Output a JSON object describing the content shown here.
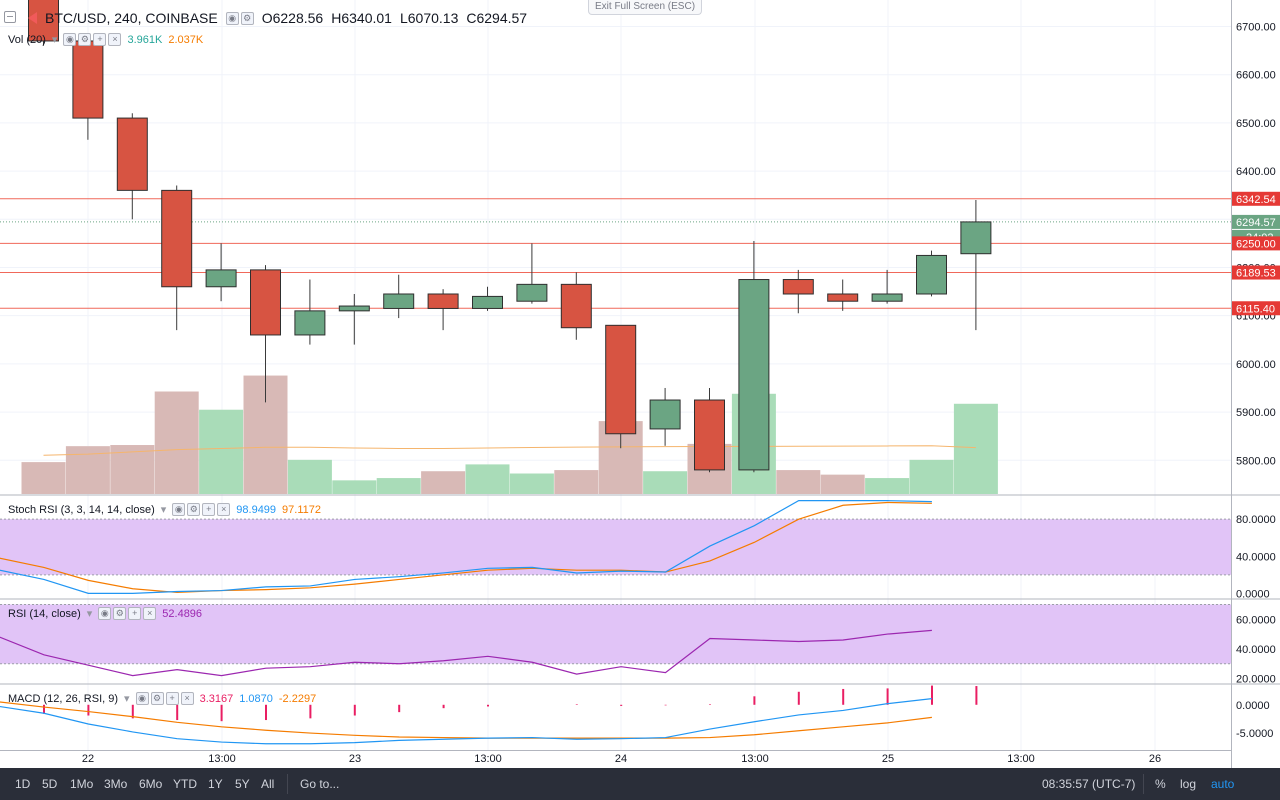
{
  "legend": {
    "symbol": "BTC/USD, 240, COINBASE",
    "open_label": "O",
    "open": "6228.56",
    "high_label": "H",
    "high": "6340.01",
    "low_label": "L",
    "low": "6070.13",
    "close_label": "C",
    "close": "6294.57"
  },
  "volume": {
    "label": "Vol (20)",
    "value1": "3.961K",
    "value2": "2.037K"
  },
  "stoch_rsi": {
    "label": "Stoch RSI (3, 3, 14, 14, close)",
    "value1": "98.9499",
    "value2": "97.1172"
  },
  "rsi": {
    "label": "RSI (14, close)",
    "value": "52.4896"
  },
  "macd": {
    "label": "MACD (12, 26, RSI, 9)",
    "value1": "3.3167",
    "value2": "1.0870",
    "value3": "-2.2297"
  },
  "exit_fullscreen": "Exit Full Screen (ESC)",
  "price_tags": {
    "h1": "6342.54",
    "last": "6294.57",
    "countdown": "24:02",
    "h2": "6250.00",
    "h3": "6189.53",
    "h4": "6115.40"
  },
  "bottom_bar": {
    "ranges": [
      "1D",
      "5D",
      "1Mo",
      "3Mo",
      "6Mo",
      "YTD",
      "1Y",
      "5Y",
      "All"
    ],
    "goto": "Go to...",
    "time": "08:35:57 (UTC-7)",
    "percent": "%",
    "log": "log",
    "auto": "auto"
  },
  "colors": {
    "up": "#6ba583",
    "down": "#d75442",
    "volume_up": "#a9dcb8",
    "volume_down": "#d8b9b6",
    "stoch_k": "#2196f3",
    "stoch_d": "#f57c00",
    "rsi": "#9c27b0",
    "band": "#e1c4f7",
    "macd_line": "#2196f3",
    "signal_line": "#f57c00",
    "hist": "#e91e63",
    "hline": "#f0685a"
  },
  "chart_data": [
    {
      "type": "candlestick",
      "title": "BTC/USD, 240, COINBASE",
      "x_ticks": [
        "22",
        "13:00",
        "23",
        "13:00",
        "24",
        "13:00",
        "25",
        "13:00",
        "26"
      ],
      "y_ticks": [
        "6700.00",
        "6600.00",
        "6500.00",
        "6400.00",
        "6300.00",
        "6200.00",
        "6100.00",
        "6000.00",
        "5900.00",
        "5800.00"
      ],
      "y_range": [
        5730,
        6755
      ],
      "horizontal_lines": [
        6342.54,
        6250.0,
        6189.53,
        6115.4
      ],
      "candles": [
        {
          "o": 6760,
          "h": 6790,
          "l": 6660,
          "c": 6670
        },
        {
          "o": 6670,
          "h": 6670,
          "l": 6465,
          "c": 6510
        },
        {
          "o": 6510,
          "h": 6520,
          "l": 6300,
          "c": 6360
        },
        {
          "o": 6360,
          "h": 6370,
          "l": 6070,
          "c": 6160
        },
        {
          "o": 6160,
          "h": 6250,
          "l": 6130,
          "c": 6195
        },
        {
          "o": 6195,
          "h": 6205,
          "l": 5920,
          "c": 6060
        },
        {
          "o": 6060,
          "h": 6175,
          "l": 6040,
          "c": 6110
        },
        {
          "o": 6110,
          "h": 6145,
          "l": 6040,
          "c": 6120
        },
        {
          "o": 6115,
          "h": 6185,
          "l": 6095,
          "c": 6145
        },
        {
          "o": 6145,
          "h": 6155,
          "l": 6070,
          "c": 6115
        },
        {
          "o": 6115,
          "h": 6160,
          "l": 6110,
          "c": 6140
        },
        {
          "o": 6130,
          "h": 6250,
          "l": 6125,
          "c": 6165
        },
        {
          "o": 6165,
          "h": 6190,
          "l": 6050,
          "c": 6075
        },
        {
          "o": 6080,
          "h": 6080,
          "l": 5825,
          "c": 5855
        },
        {
          "o": 5865,
          "h": 5950,
          "l": 5830,
          "c": 5925
        },
        {
          "o": 5925,
          "h": 5950,
          "l": 5775,
          "c": 5780
        },
        {
          "o": 5780,
          "h": 6255,
          "l": 5775,
          "c": 6175
        },
        {
          "o": 6175,
          "h": 6195,
          "l": 6105,
          "c": 6145
        },
        {
          "o": 6145,
          "h": 6175,
          "l": 6110,
          "c": 6130
        },
        {
          "o": 6130,
          "h": 6195,
          "l": 6125,
          "c": 6145
        },
        {
          "o": 6145,
          "h": 6235,
          "l": 6140,
          "c": 6225
        },
        {
          "o": 6228.56,
          "h": 6340.01,
          "l": 6070.13,
          "c": 6294.57
        }
      ],
      "volume": [
        1400,
        2100,
        2150,
        4500,
        3700,
        5200,
        1500,
        600,
        700,
        1000,
        1300,
        900,
        1050,
        3200,
        1000,
        2200,
        4400,
        1050,
        850,
        700,
        1500,
        3961
      ],
      "volume_ma": [
        1700,
        1750,
        1850,
        1950,
        2000,
        2050,
        2050,
        2020,
        2000,
        2000,
        2020,
        2040,
        2060,
        2070,
        2080,
        2085,
        2090,
        2095,
        2100,
        2110,
        2120,
        2037
      ]
    },
    {
      "type": "line",
      "title": "Stoch RSI (3, 3, 14, 14, close)",
      "y_ticks": [
        "80.0000",
        "40.0000",
        "0.0000"
      ],
      "y_range": [
        -5,
        105
      ],
      "band": [
        20,
        80
      ],
      "series": [
        {
          "name": "K",
          "values": [
            25,
            15,
            0,
            0,
            2,
            3,
            7,
            8,
            15,
            18,
            22,
            27,
            28,
            22,
            24,
            23,
            51,
            73,
            100,
            100,
            100,
            98.9499
          ]
        },
        {
          "name": "D",
          "values": [
            38,
            28,
            14,
            5,
            1,
            3,
            4,
            6,
            10,
            15,
            20,
            25,
            27,
            25,
            25,
            23,
            35,
            55,
            80,
            95,
            98,
            97.1172
          ]
        }
      ]
    },
    {
      "type": "line",
      "title": "RSI (14, close)",
      "y_ticks": [
        "60.0000",
        "40.0000",
        "20.0000"
      ],
      "y_range": [
        17,
        73
      ],
      "band": [
        30,
        70
      ],
      "series": [
        {
          "name": "RSI",
          "values": [
            48,
            36,
            29,
            22,
            26,
            22,
            27,
            28,
            31,
            30,
            32,
            35,
            31,
            23,
            28,
            24,
            47,
            46,
            45,
            46,
            50,
            52.4896
          ]
        }
      ]
    },
    {
      "type": "line",
      "title": "MACD (12, 26, RSI, 9)",
      "y_ticks": [
        "0.0000",
        "-5.0000"
      ],
      "y_range": [
        -8,
        3.5
      ],
      "series": [
        {
          "name": "MACD",
          "values": [
            -0.3,
            -1.5,
            -3.4,
            -4.8,
            -6.0,
            -6.6,
            -6.9,
            -6.9,
            -6.7,
            -6.3,
            -6.1,
            -5.9,
            -5.8,
            -6.1,
            -6.0,
            -5.8,
            -4.3,
            -3.0,
            -1.8,
            -1.0,
            0.2,
            1.087
          ]
        },
        {
          "name": "Signal",
          "values": [
            0.5,
            -0.4,
            -1.2,
            -2.1,
            -3.1,
            -3.9,
            -4.5,
            -5.0,
            -5.4,
            -5.7,
            -5.8,
            -5.9,
            -5.9,
            -5.9,
            -5.9,
            -5.9,
            -5.8,
            -5.3,
            -4.6,
            -3.9,
            -3.2,
            -2.2297
          ]
        },
        {
          "name": "Histogram",
          "values": [
            -1.6,
            -1.9,
            -2.4,
            -2.7,
            -2.9,
            -2.7,
            -2.4,
            -1.9,
            -1.3,
            -0.6,
            -0.3,
            0.0,
            0.1,
            -0.2,
            -0.1,
            0.1,
            1.5,
            2.3,
            2.8,
            2.9,
            3.4,
            3.3167
          ]
        }
      ]
    }
  ]
}
